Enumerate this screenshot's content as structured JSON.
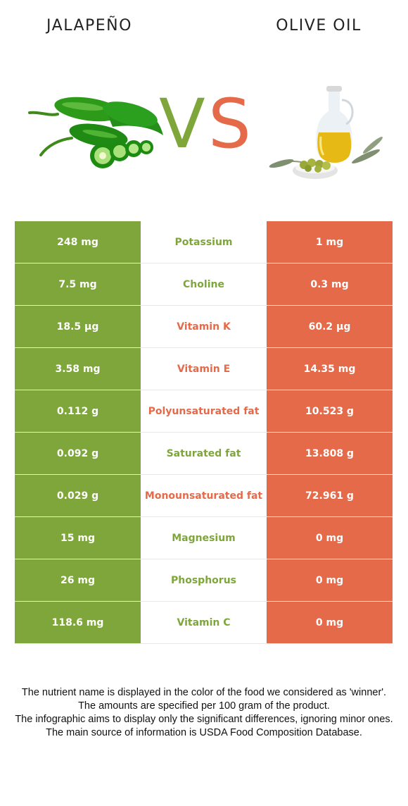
{
  "header": {
    "left_food": "JALAPEÑO",
    "right_food": "OLIVE OIL",
    "vs_v": "V",
    "vs_s": "S"
  },
  "colors": {
    "left": "#7ea63a",
    "right": "#e46a4a"
  },
  "icons": {
    "left": "jalapeno-icon",
    "right": "olive-oil-bottle-icon"
  },
  "rows": [
    {
      "left": "248 mg",
      "nutrient": "Potassium",
      "right": "1 mg",
      "winner": "left"
    },
    {
      "left": "7.5 mg",
      "nutrient": "Choline",
      "right": "0.3 mg",
      "winner": "left"
    },
    {
      "left": "18.5 µg",
      "nutrient": "Vitamin K",
      "right": "60.2 µg",
      "winner": "right"
    },
    {
      "left": "3.58 mg",
      "nutrient": "Vitamin E",
      "right": "14.35 mg",
      "winner": "right"
    },
    {
      "left": "0.112 g",
      "nutrient": "Polyunsaturated fat",
      "right": "10.523 g",
      "winner": "right"
    },
    {
      "left": "0.092 g",
      "nutrient": "Saturated fat",
      "right": "13.808 g",
      "winner": "left"
    },
    {
      "left": "0.029 g",
      "nutrient": "Monounsaturated fat",
      "right": "72.961 g",
      "winner": "right"
    },
    {
      "left": "15 mg",
      "nutrient": "Magnesium",
      "right": "0 mg",
      "winner": "left"
    },
    {
      "left": "26 mg",
      "nutrient": "Phosphorus",
      "right": "0 mg",
      "winner": "left"
    },
    {
      "left": "118.6 mg",
      "nutrient": "Vitamin C",
      "right": "0 mg",
      "winner": "left"
    }
  ],
  "footnote": [
    "The nutrient name is displayed in the color of the food we considered as 'winner'.",
    "The amounts are specified per 100 gram of the product.",
    "The infographic aims to display only the significant differences, ignoring minor ones.",
    "The main source of information is USDA Food Composition Database."
  ]
}
